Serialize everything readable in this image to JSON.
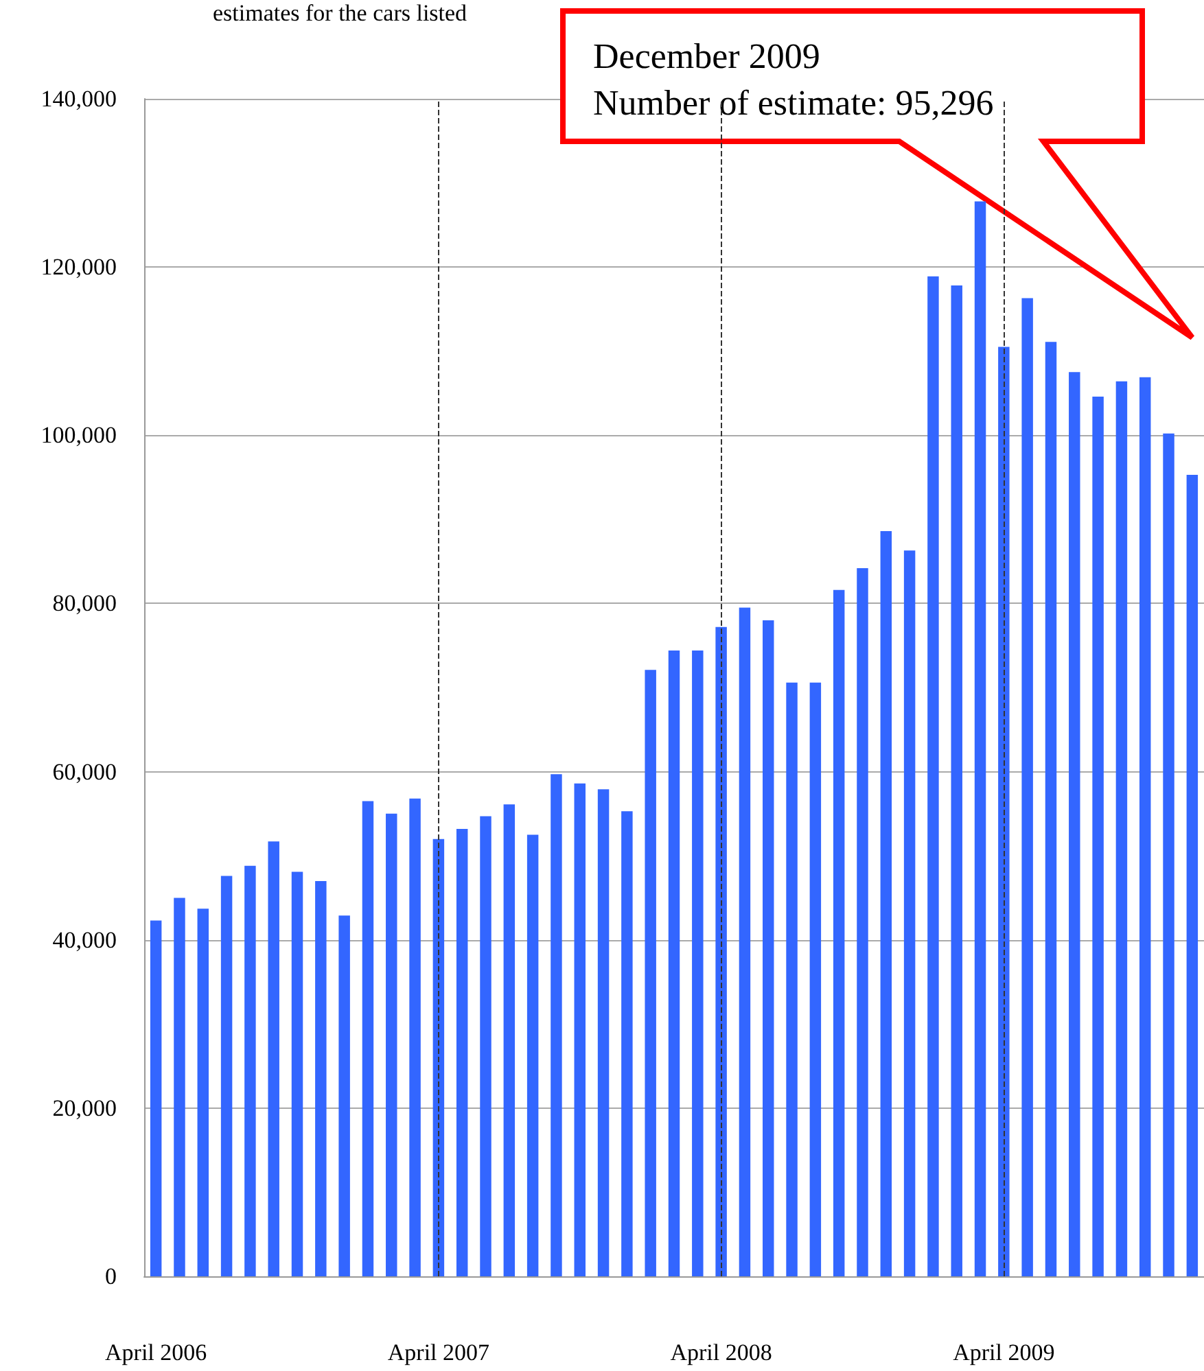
{
  "chart_data": {
    "type": "bar",
    "title": "estimates for the cars listed",
    "categories": [
      "April 2006",
      null,
      null,
      null,
      null,
      null,
      null,
      null,
      null,
      null,
      null,
      null,
      "April 2007",
      null,
      null,
      null,
      null,
      null,
      null,
      null,
      null,
      null,
      null,
      null,
      "April 2008",
      null,
      null,
      null,
      null,
      null,
      null,
      null,
      null,
      null,
      null,
      null,
      "April 2009",
      null,
      null,
      null,
      null,
      null,
      null,
      null,
      null
    ],
    "series": [
      {
        "color": "#3366ff",
        "values": [
          42300,
          45000,
          43700,
          47600,
          48800,
          51700,
          48100,
          47000,
          42900,
          56500,
          55000,
          56800,
          52000,
          53200,
          54700,
          56100,
          52500,
          59700,
          58600,
          57900,
          55300,
          72100,
          74400,
          74400,
          77200,
          79500,
          78000,
          70600,
          70600,
          81600,
          84200,
          88600,
          86300,
          118900,
          117800,
          127800,
          110500,
          116300,
          111100,
          107500,
          104600,
          106400,
          106900,
          100200,
          95296
        ]
      }
    ],
    "ylim": [
      0,
      140000
    ],
    "yticks": [
      0,
      {
        "value": 20000,
        "label": "20,000"
      },
      {
        "value": 40000,
        "label": "40,000"
      },
      {
        "value": 60000,
        "label": "60,000"
      },
      {
        "value": 80000,
        "label": "80,000"
      },
      {
        "value": 100000,
        "label": "100,000"
      },
      {
        "value": 120000,
        "label": "120,000"
      },
      {
        "value": 140000,
        "label": "140,000"
      }
    ],
    "grid": "y",
    "ref_lines": [
      {
        "axis": "x",
        "value": "April 2007",
        "line_style": "dashed",
        "color": "#333333"
      },
      {
        "axis": "x",
        "value": "April 2008",
        "line_style": "dashed",
        "color": "#333333"
      },
      {
        "axis": "x",
        "value": "April 2009",
        "line_style": "dashed",
        "color": "#333333"
      }
    ],
    "annotations": [
      "December 2009\nNumber of estimate: 95,296"
    ]
  }
}
